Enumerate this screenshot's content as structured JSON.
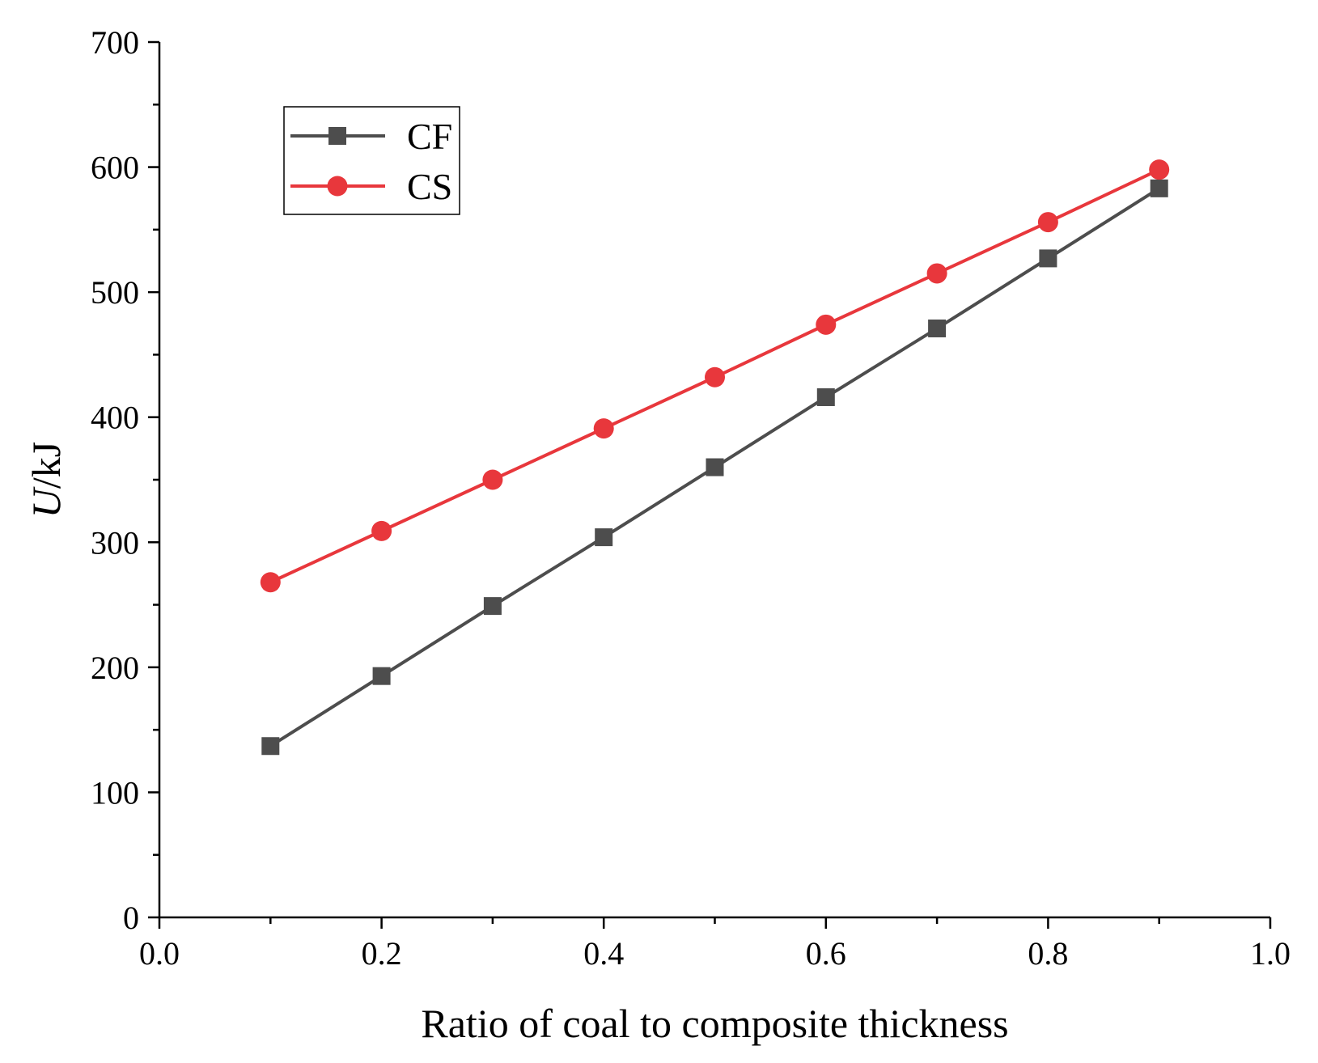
{
  "chart_data": {
    "type": "line",
    "xlabel": "Ratio of coal to composite thickness",
    "ylabel": {
      "italic": "U",
      "rest": "/kJ"
    },
    "xlim": [
      0.0,
      1.0
    ],
    "ylim": [
      0,
      700
    ],
    "x_ticks": [
      "0.0",
      "0.2",
      "0.4",
      "0.6",
      "0.8",
      "1.0"
    ],
    "y_ticks": [
      "0",
      "100",
      "200",
      "300",
      "400",
      "500",
      "600",
      "700"
    ],
    "legend_position": "top-left",
    "x": [
      0.1,
      0.2,
      0.3,
      0.4,
      0.5,
      0.6,
      0.7,
      0.8,
      0.9
    ],
    "series": [
      {
        "name": "CF",
        "marker": "square",
        "color": "#4d4d4d",
        "values": [
          137,
          193,
          249,
          304,
          360,
          416,
          471,
          527,
          583
        ]
      },
      {
        "name": "CS",
        "marker": "circle",
        "color": "#e8373c",
        "values": [
          268,
          309,
          350,
          391,
          432,
          474,
          515,
          556,
          598
        ]
      }
    ]
  }
}
